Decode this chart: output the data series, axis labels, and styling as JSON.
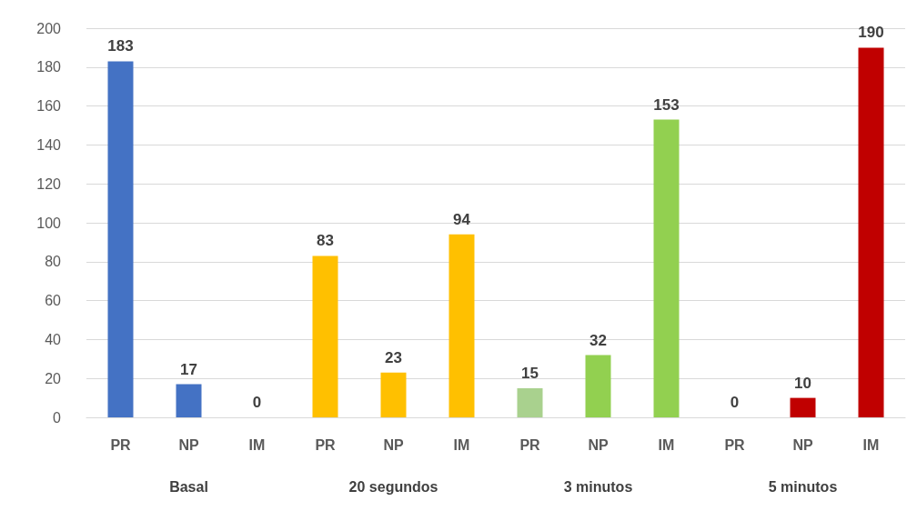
{
  "chart_data": {
    "type": "bar",
    "categories": [
      "PR",
      "NP",
      "IM",
      "PR",
      "NP",
      "IM",
      "PR",
      "NP",
      "IM",
      "PR",
      "NP",
      "IM"
    ],
    "values": [
      183,
      17,
      0,
      83,
      23,
      94,
      15,
      32,
      153,
      0,
      10,
      190
    ],
    "colors": [
      "#4472c4",
      "#4472c4",
      "#4472c4",
      "#ffc000",
      "#ffc000",
      "#ffc000",
      "#a9d18e",
      "#92d050",
      "#92d050",
      "#c55a11",
      "#c00000",
      "#c00000"
    ],
    "ylim": [
      0,
      200
    ],
    "yticks": [
      0,
      20,
      40,
      60,
      80,
      100,
      120,
      140,
      160,
      180,
      200
    ],
    "grid": "y",
    "data_labels": true,
    "annotations": [
      "Basal",
      "20 segundos",
      "3 minutos",
      "5 minutos"
    ]
  }
}
